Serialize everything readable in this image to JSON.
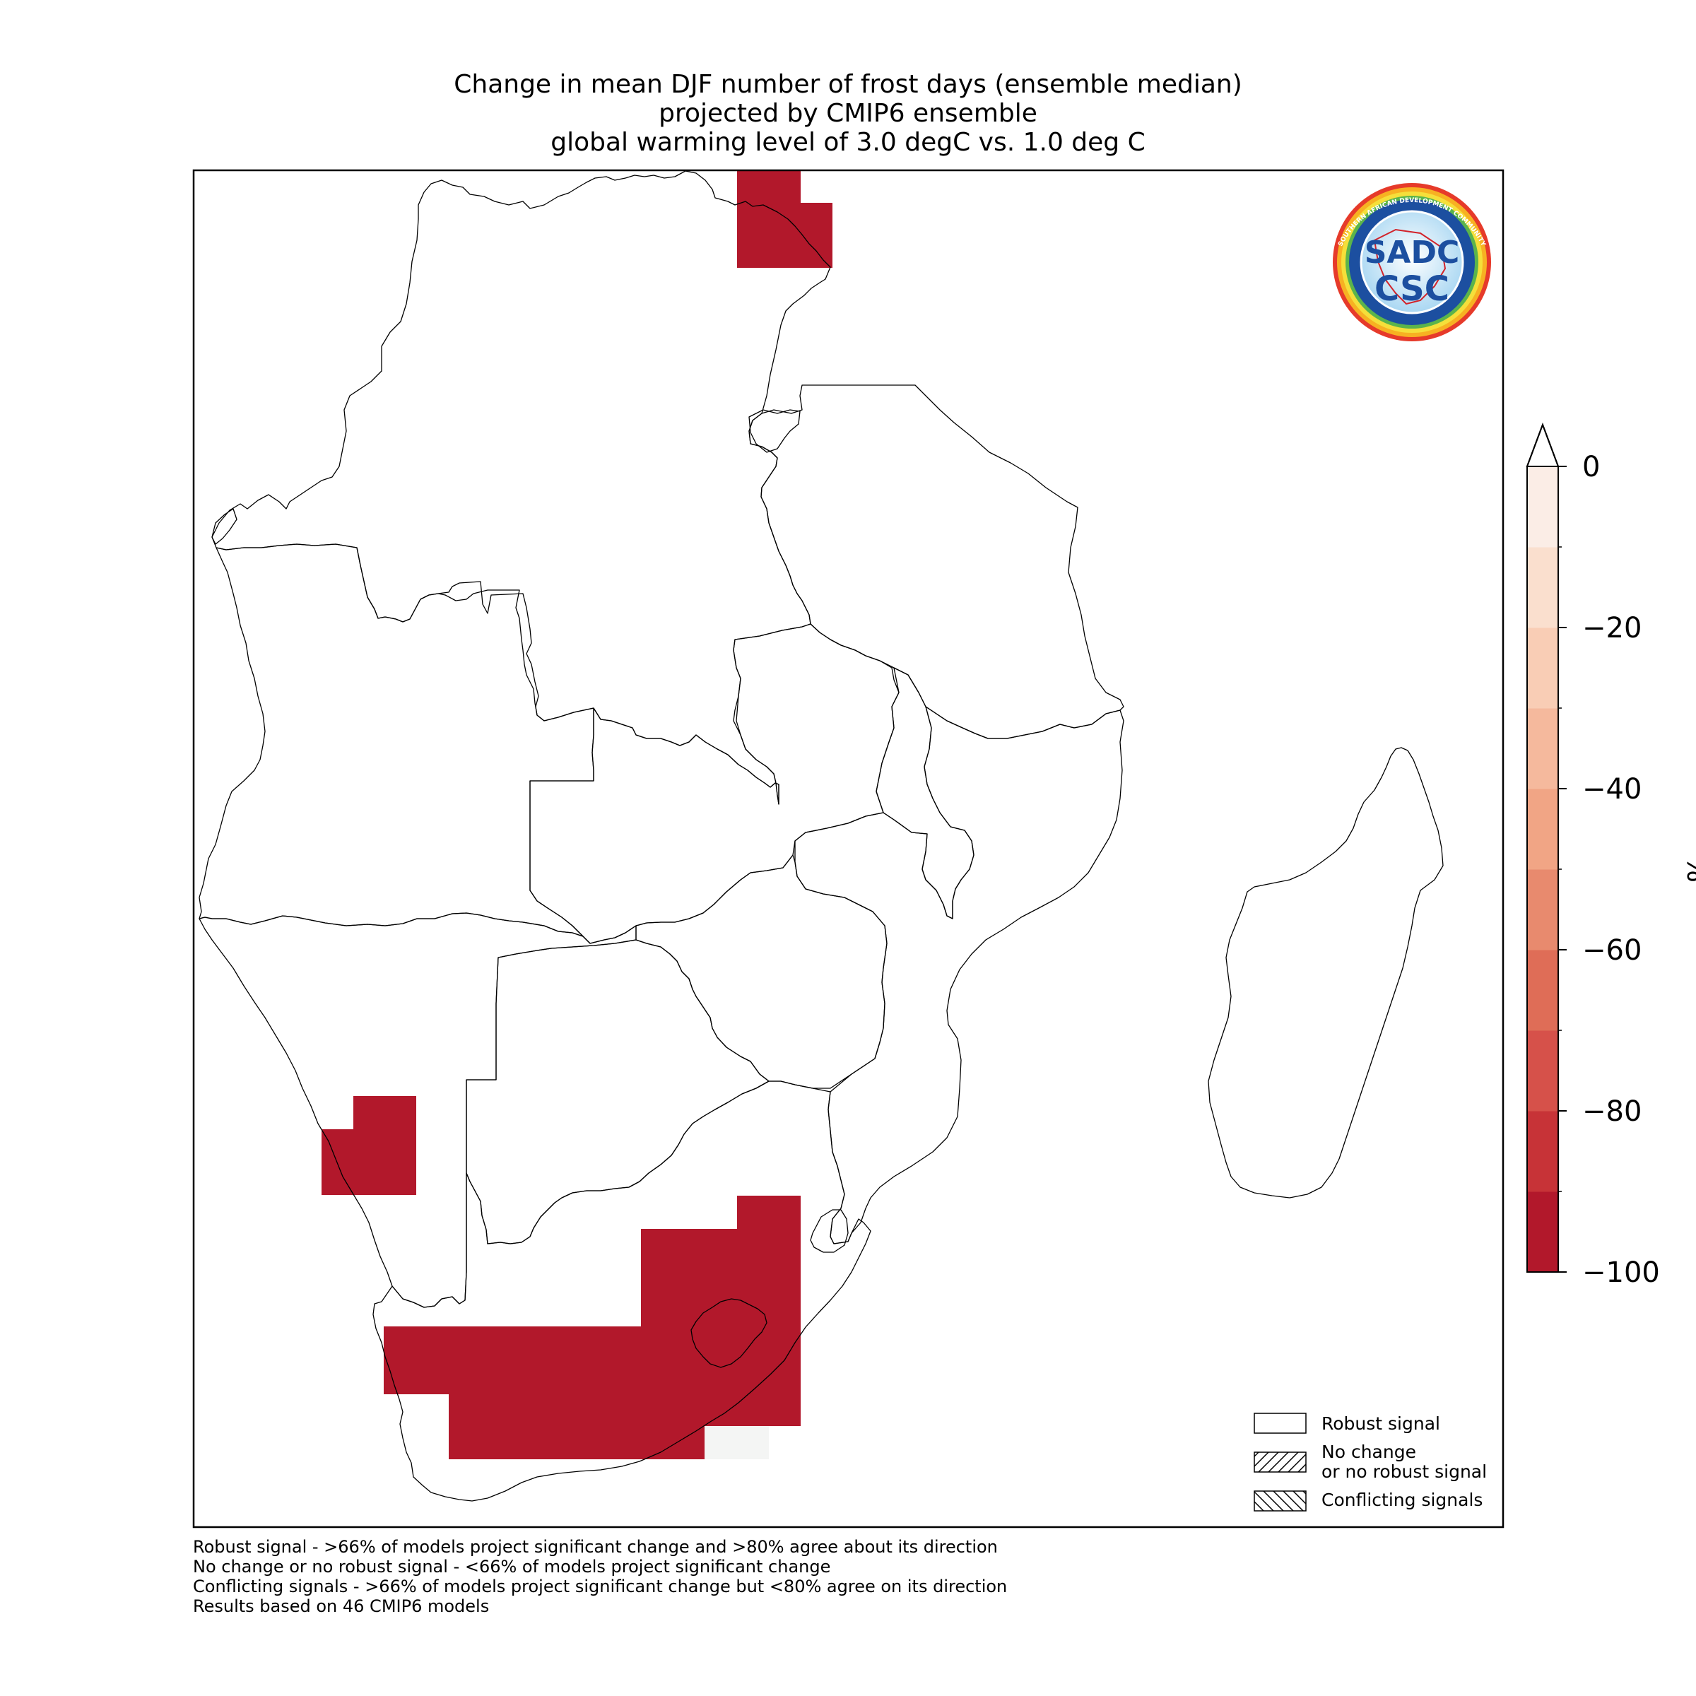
{
  "title": {
    "lines": [
      "Change in mean DJF number of frost days (ensemble median)",
      "projected by CMIP6 ensemble",
      "global warming level of 3.0 degC vs. 1.0 deg C"
    ]
  },
  "logo": {
    "top": "SADC",
    "bottom": "CSC",
    "ring_top": "SOUTHERN AFRICAN DEVELOPMENT COMMUNITY",
    "ring_bottom": "CLIMATE SERVICES CENTRE"
  },
  "colorbar": {
    "unit": "%",
    "min": -100,
    "max": 0,
    "ticks": [
      "0",
      "−20",
      "−40",
      "−60",
      "−80",
      "−100"
    ],
    "extend": "max",
    "colors": [
      "#b2182b",
      "#c73337",
      "#d6514a",
      "#df6d57",
      "#e88a6e",
      "#f1a585",
      "#f5b99d",
      "#f9cdb5",
      "#fadfce",
      "#fbede6"
    ]
  },
  "legend": {
    "items": [
      {
        "label": "Robust signal",
        "hatch": "none"
      },
      {
        "label": "No change\nor no robust signal",
        "hatch": "diagonal"
      },
      {
        "label": "Conflicting signals",
        "hatch": "backdiagonal"
      }
    ]
  },
  "footnotes": [
    "Robust signal - >66% of models project significant change and >80% agree about its direction",
    "No change or no robust signal - <66% of models project significant change",
    "Conflicting signals - >66% of models project significant change but <80% agree on its direction",
    "Results based on 46 CMIP6 models"
  ],
  "map_data": {
    "variable": "Change in mean DJF number of frost days",
    "units": "%",
    "signal_cells_color": "#b2182b",
    "signal_cells_value": -100,
    "regions_with_change": [
      "northern Tanzania / southern Kenya highlands",
      "central Namibia highlands",
      "South Africa interior plateau and Lesotho"
    ]
  }
}
